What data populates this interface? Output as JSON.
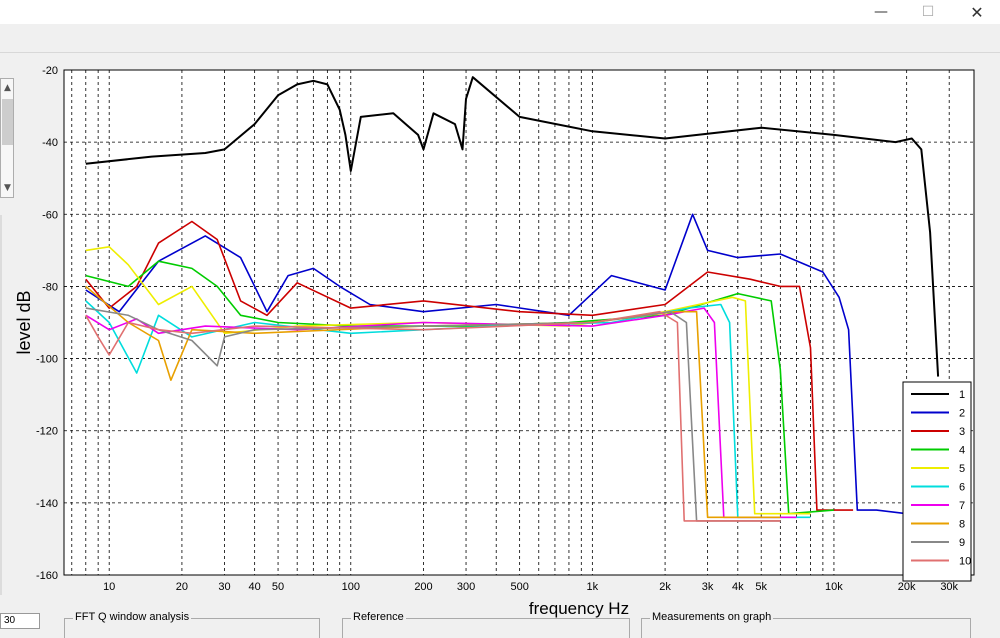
{
  "window": {
    "minimize_glyph": "—",
    "maximize_glyph": "☐",
    "close_glyph": "✕"
  },
  "left_panel": {
    "number_field_value": "30"
  },
  "groups": {
    "fft": "FFT Q window analysis",
    "reference": "Reference",
    "measurements": "Measurements on graph"
  },
  "chart_data": {
    "type": "line",
    "xlabel": "frequency   Hz",
    "ylabel": "level dB",
    "xscale": "log",
    "xlim": [
      6.5,
      38000
    ],
    "ylim": [
      -160,
      -20
    ],
    "xticks": [
      10,
      20,
      30,
      40,
      50,
      100,
      200,
      300,
      500,
      1000,
      2000,
      3000,
      4000,
      5000,
      10000,
      20000,
      30000
    ],
    "xtick_labels": [
      "10",
      "20",
      "30",
      "40",
      "50",
      "100",
      "200",
      "300",
      "500",
      "1k",
      "2k",
      "3k",
      "4k",
      "5k",
      "10k",
      "20k",
      "30k"
    ],
    "yticks": [
      -20,
      -40,
      -60,
      -80,
      -100,
      -120,
      -140,
      -160
    ],
    "grid": true,
    "legend_position": "bottom-right",
    "series": [
      {
        "name": "1",
        "color": "#000000",
        "x": [
          8,
          15,
          25,
          30,
          40,
          50,
          60,
          70,
          80,
          90,
          95,
          100,
          110,
          150,
          190,
          200,
          220,
          270,
          290,
          300,
          320,
          500,
          1000,
          2000,
          5000,
          10000,
          18000,
          21000,
          23000,
          25000,
          27000
        ],
        "y": [
          -46,
          -44,
          -43,
          -42,
          -35,
          -27,
          -24,
          -23,
          -24,
          -31,
          -38,
          -48,
          -33,
          -32,
          -38,
          -42,
          -32,
          -35,
          -42,
          -28,
          -22,
          -33,
          -37,
          -39,
          -36,
          -38,
          -40,
          -39,
          -42,
          -65,
          -105
        ]
      },
      {
        "name": "2",
        "color": "#0000cc",
        "x": [
          8,
          11,
          16,
          25,
          35,
          45,
          55,
          70,
          90,
          120,
          200,
          400,
          800,
          1200,
          2000,
          2600,
          3000,
          4000,
          6000,
          9000,
          10500,
          11500,
          12500,
          15000,
          20000,
          27000
        ],
        "y": [
          -81,
          -87,
          -73,
          -66,
          -72,
          -87,
          -77,
          -75,
          -80,
          -85,
          -87,
          -85,
          -88,
          -77,
          -81,
          -60,
          -70,
          -72,
          -71,
          -76,
          -83,
          -92,
          -142,
          -142,
          -143,
          -142
        ]
      },
      {
        "name": "3",
        "color": "#cc0000",
        "x": [
          8,
          10,
          13,
          16,
          22,
          28,
          35,
          45,
          60,
          100,
          200,
          500,
          1000,
          2000,
          3000,
          4500,
          6000,
          7200,
          8000,
          8500,
          12000
        ],
        "y": [
          -78,
          -86,
          -80,
          -68,
          -62,
          -67,
          -84,
          -88,
          -79,
          -86,
          -84,
          -87,
          -88,
          -85,
          -76,
          -78,
          -80,
          -80,
          -97,
          -142,
          -142
        ]
      },
      {
        "name": "4",
        "color": "#00cc00",
        "x": [
          8,
          12,
          16,
          22,
          28,
          35,
          50,
          100,
          300,
          800,
          2000,
          4000,
          5500,
          6000,
          6500,
          10000
        ],
        "y": [
          -77,
          -80,
          -73,
          -75,
          -80,
          -88,
          -90,
          -91,
          -91,
          -90,
          -88,
          -82,
          -84,
          -103,
          -143,
          -142
        ]
      },
      {
        "name": "5",
        "color": "#eeee00",
        "x": [
          8,
          10,
          12,
          16,
          22,
          30,
          60,
          200,
          800,
          2000,
          3800,
          4300,
          4700,
          8000
        ],
        "y": [
          -70,
          -69,
          -74,
          -85,
          -80,
          -93,
          -91,
          -90,
          -91,
          -87,
          -83,
          -84,
          -143,
          -143
        ]
      },
      {
        "name": "6",
        "color": "#00dddd",
        "x": [
          8,
          10,
          13,
          16,
          22,
          40,
          100,
          400,
          1200,
          2500,
          3400,
          3700,
          4000,
          8000
        ],
        "y": [
          -84,
          -90,
          -104,
          -88,
          -94,
          -90,
          -93,
          -91,
          -90,
          -86,
          -85,
          -90,
          -144,
          -144
        ]
      },
      {
        "name": "7",
        "color": "#ee00ee",
        "x": [
          8,
          10,
          13,
          16,
          25,
          60,
          200,
          1000,
          2000,
          2900,
          3200,
          3500,
          7000
        ],
        "y": [
          -88,
          -92,
          -89,
          -93,
          -91,
          -92,
          -90,
          -91,
          -88,
          -86,
          -90,
          -144,
          -144
        ]
      },
      {
        "name": "8",
        "color": "#e8a000",
        "x": [
          8,
          12,
          16,
          18,
          22,
          40,
          200,
          1000,
          2200,
          2700,
          3000,
          6000
        ],
        "y": [
          -80,
          -90,
          -95,
          -106,
          -92,
          -93,
          -91,
          -90,
          -87,
          -87,
          -144,
          -144
        ]
      },
      {
        "name": "9",
        "color": "#888888",
        "x": [
          8,
          12,
          16,
          22,
          28,
          30,
          40,
          200,
          1000,
          2100,
          2450,
          2700,
          6000
        ],
        "y": [
          -86,
          -88,
          -92,
          -95,
          -102,
          -94,
          -92,
          -91,
          -90,
          -87,
          -90,
          -145,
          -145
        ]
      },
      {
        "name": "10",
        "color": "#e07070",
        "x": [
          8,
          9,
          10,
          12,
          16,
          22,
          40,
          200,
          1000,
          1900,
          2250,
          2400,
          6000
        ],
        "y": [
          -88,
          -94,
          -99,
          -90,
          -92,
          -93,
          -91,
          -92,
          -90,
          -87,
          -90,
          -145,
          -145
        ]
      }
    ]
  }
}
